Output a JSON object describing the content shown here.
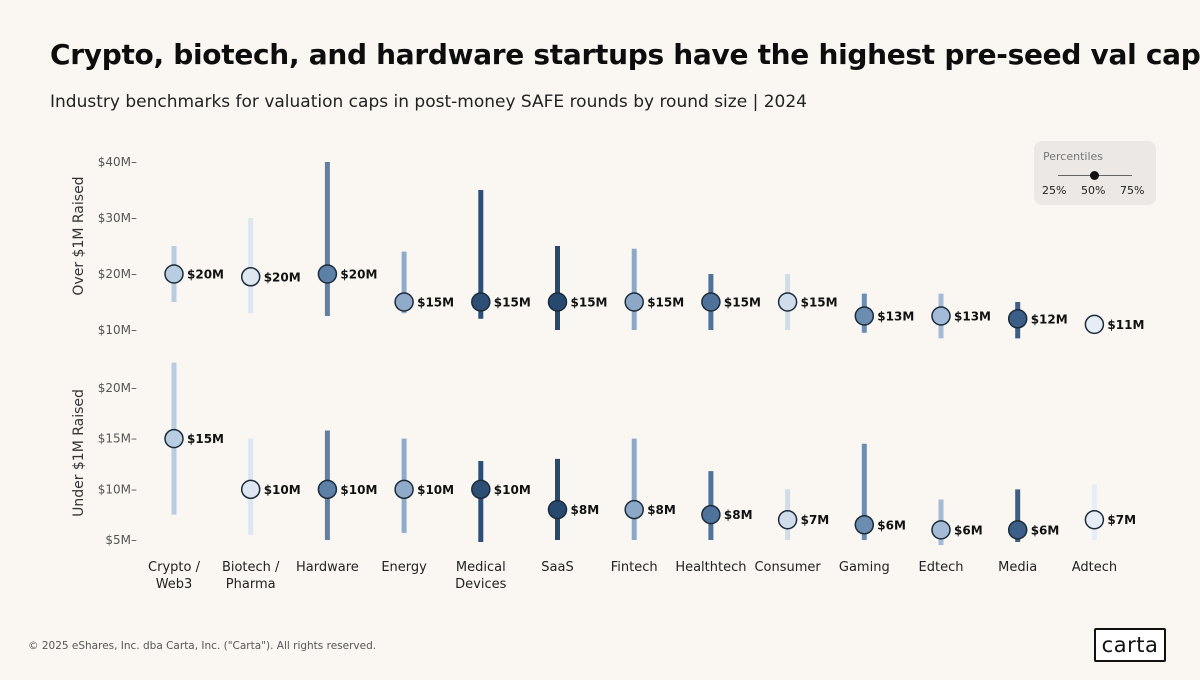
{
  "title": "Crypto, biotech, and hardware startups have the highest pre-seed val caps",
  "subtitle": "Industry benchmarks for valuation caps in post-money SAFE rounds by round size | 2024",
  "footer": "© 2025 eShares, Inc. dba Carta, Inc. (\"Carta\"). All rights reserved.",
  "logo_text": "carta",
  "legend": {
    "title": "Percentiles",
    "labels": [
      "25%",
      "50%",
      "75%"
    ]
  },
  "colors": {
    "background": "#faf7f3",
    "marker_stroke": "#1c2b3a",
    "label_text": "#111111",
    "axis_text": "#555555"
  },
  "chart_data": {
    "type": "range_dot",
    "categories": [
      "Crypto / Web3",
      "Biotech / Pharma",
      "Hardware",
      "Energy",
      "Medical Devices",
      "SaaS",
      "Fintech",
      "Healthtech",
      "Consumer",
      "Gaming",
      "Edtech",
      "Media",
      "Adtech"
    ],
    "category_lines": [
      [
        "Crypto /",
        "Web3"
      ],
      [
        "Biotech /",
        "Pharma"
      ],
      [
        "Hardware"
      ],
      [
        "Energy"
      ],
      [
        "Medical",
        "Devices"
      ],
      [
        "SaaS"
      ],
      [
        "Fintech"
      ],
      [
        "Healthtech"
      ],
      [
        "Consumer"
      ],
      [
        "Gaming"
      ],
      [
        "Edtech"
      ],
      [
        "Media"
      ],
      [
        "Adtech"
      ]
    ],
    "category_colors": [
      "#b8cde2",
      "#dde6f1",
      "#5c80a6",
      "#8fabc9",
      "#2d4f76",
      "#27496f",
      "#8ca8c7",
      "#4e7299",
      "#d0dcea",
      "#6b8db2",
      "#a3bbd6",
      "#3b5f87",
      "#e6edf5"
    ],
    "panels": [
      {
        "name": "Over $1M Raised",
        "ylim": [
          8,
          41
        ],
        "ticks": [
          10,
          20,
          30,
          40
        ],
        "tick_labels": [
          "$10M–",
          "$20M–",
          "$30M–",
          "$40M–"
        ],
        "p25": [
          15,
          13,
          12.5,
          13,
          12,
          10,
          10,
          10,
          10,
          9.5,
          8.5,
          8.5,
          10
        ],
        "median": [
          20,
          19.5,
          20,
          15,
          15,
          15,
          15,
          15,
          15,
          12.5,
          12.5,
          12,
          11
        ],
        "p75": [
          25,
          30,
          40,
          24,
          35,
          25,
          24.5,
          20,
          20,
          16.5,
          16.5,
          15,
          12
        ],
        "labels": [
          "$20M",
          "$20M",
          "$20M",
          "$15M",
          "$15M",
          "$15M",
          "$15M",
          "$15M",
          "$15M",
          "$13M",
          "$13M",
          "$12M",
          "$11M"
        ]
      },
      {
        "name": "Under $1M Raised",
        "ylim": [
          4.5,
          23
        ],
        "ticks": [
          5,
          10,
          15,
          20
        ],
        "tick_labels": [
          "$5M–",
          "$10M–",
          "$15M–",
          "$20M–"
        ],
        "p25": [
          7.5,
          5.5,
          5,
          5.7,
          4.8,
          5,
          5,
          5,
          5,
          5,
          4.5,
          4.8,
          5
        ],
        "median": [
          15,
          10,
          10,
          10,
          10,
          8,
          8,
          7.5,
          7,
          6.5,
          6,
          6,
          7
        ],
        "p75": [
          22.5,
          15,
          15.8,
          15,
          12.8,
          13,
          15,
          11.8,
          10,
          14.5,
          9,
          10,
          10.5
        ],
        "labels": [
          "$15M",
          "$10M",
          "$10M",
          "$10M",
          "$10M",
          "$8M",
          "$8M",
          "$8M",
          "$7M",
          "$6M",
          "$6M",
          "$6M",
          "$7M"
        ]
      }
    ]
  }
}
